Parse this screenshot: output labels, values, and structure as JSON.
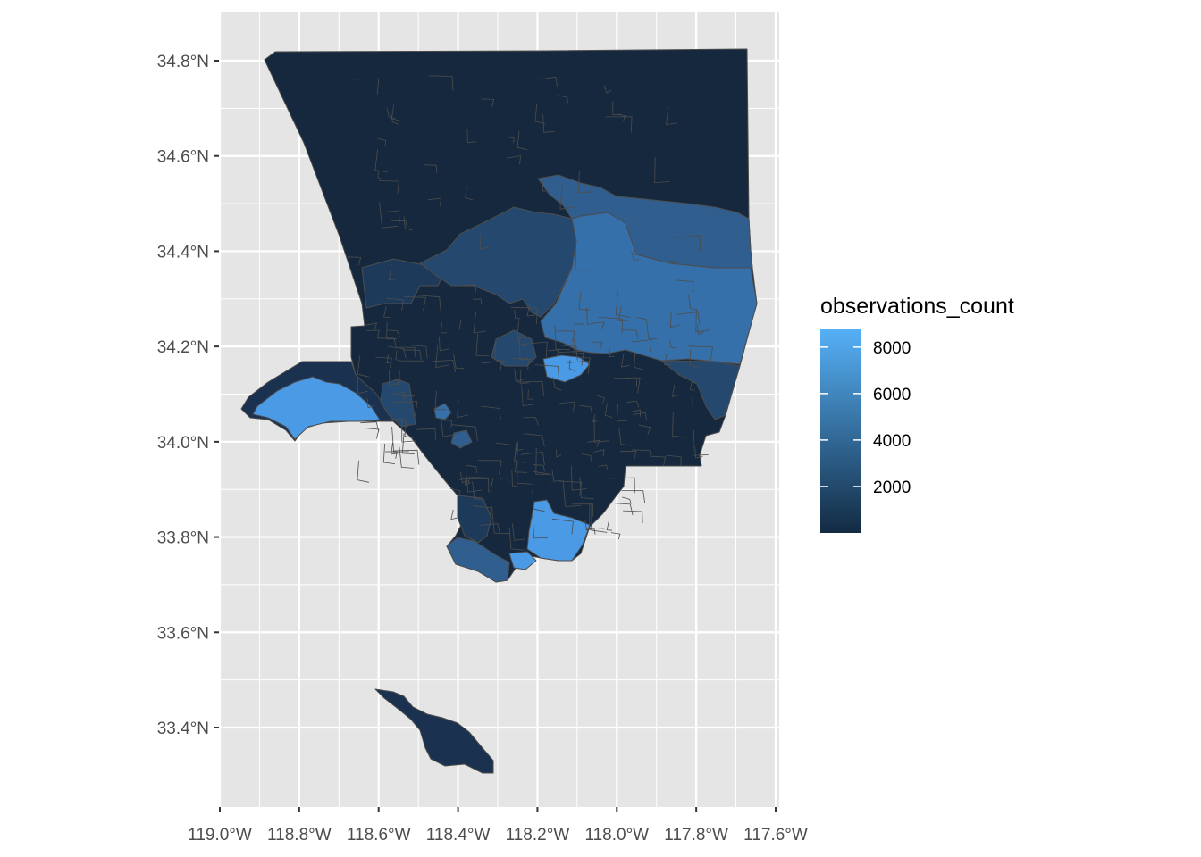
{
  "map": {
    "type": "choropleth",
    "region_lines": "tract borders, grey",
    "background_color": "#e5e5e5",
    "grid": true,
    "grid_color": "#ffffff",
    "x_ticks": [
      "119.0°W",
      "118.8°W",
      "118.6°W",
      "118.4°W",
      "118.2°W",
      "118.0°W",
      "117.8°W",
      "117.6°W"
    ],
    "x_values": [
      -119.0,
      -118.8,
      -118.6,
      -118.4,
      -118.2,
      -118.0,
      -117.8,
      -117.6
    ],
    "y_ticks": [
      "33.4°N",
      "33.6°N",
      "33.8°N",
      "34.0°N",
      "34.2°N",
      "34.4°N",
      "34.6°N",
      "34.8°N"
    ],
    "y_values": [
      33.4,
      33.6,
      33.8,
      34.0,
      34.2,
      34.4,
      34.6,
      34.8
    ],
    "xlim": [
      -119.02,
      -117.6
    ],
    "ylim": [
      33.28,
      34.9
    ]
  },
  "legend": {
    "title": "observations_count",
    "position": "right",
    "ticks": [
      "8000",
      "6000",
      "4000",
      "2000"
    ],
    "tick_values": [
      8000,
      6000,
      4000,
      2000
    ],
    "range": [
      0,
      8800
    ],
    "low_color": "#132b43",
    "high_color": "#56b1f7"
  },
  "colors": {
    "dark": "#15283d",
    "mid_dark": "#1e3a5a",
    "mid": "#25486e",
    "mid_light": "#2f5e8f",
    "light": "#3670aa",
    "brightest": "#4a9ae6",
    "border": "#4d4d4d"
  }
}
